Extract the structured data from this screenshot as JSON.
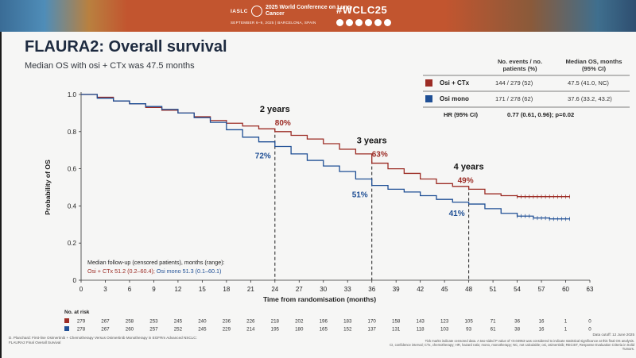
{
  "banner": {
    "org": "IASLC",
    "conference": "2025 World Conference on Lung Cancer",
    "dates": "SEPTEMBER 6–9, 2025 | BARCELONA, SPAIN",
    "hashtag": "#WCLC25",
    "social_icons": [
      "facebook-icon",
      "linkedin-icon",
      "x-icon",
      "instagram-icon",
      "youtube-icon",
      "wechat-icon"
    ]
  },
  "slide": {
    "title": "FLAURA2: Overall survival",
    "subtitle": "Median OS with osi + CTx was 47.5 months"
  },
  "table": {
    "col1_header": "No. events / no. patients (%)",
    "col2_header": "Median OS, months (95% CI)",
    "rows": [
      {
        "label": "Osi + CTx",
        "events": "144 / 279 (52)",
        "median": "47.5 (41.0, NC)",
        "color": "#9c2c25"
      },
      {
        "label": "Osi mono",
        "events": "171 / 278 (62)",
        "median": "37.6 (33.2, 43.2)",
        "color": "#1f4f95"
      }
    ],
    "hr_label": "HR (95% CI)",
    "hr_value": "0.77 (0.61, 0.96); p=0.02"
  },
  "chart_data": {
    "type": "line",
    "title": "FLAURA2: Overall survival",
    "xlabel": "Time from randomisation (months)",
    "ylabel": "Probability of OS",
    "xlim": [
      0,
      63
    ],
    "ylim": [
      0,
      1.0
    ],
    "x_ticks": [
      0,
      3,
      6,
      9,
      12,
      15,
      18,
      21,
      24,
      27,
      30,
      33,
      36,
      39,
      42,
      45,
      48,
      51,
      54,
      57,
      60,
      63
    ],
    "y_ticks": [
      "0",
      "0.2",
      "0.4",
      "0.6",
      "0.8",
      "1.0"
    ],
    "y_tick_values": [
      0,
      0.2,
      0.4,
      0.6,
      0.8,
      1.0
    ],
    "series": [
      {
        "name": "Osi + CTx",
        "color": "#9c2c25",
        "x": [
          0,
          2,
          4,
          6,
          8,
          10,
          12,
          14,
          16,
          18,
          20,
          22,
          24,
          26,
          28,
          30,
          32,
          34,
          36,
          38,
          40,
          42,
          44,
          46,
          48,
          50,
          52,
          54,
          56,
          58,
          60.5
        ],
        "y": [
          1.0,
          0.985,
          0.965,
          0.95,
          0.93,
          0.915,
          0.9,
          0.88,
          0.86,
          0.845,
          0.83,
          0.815,
          0.8,
          0.78,
          0.76,
          0.735,
          0.705,
          0.68,
          0.63,
          0.6,
          0.575,
          0.545,
          0.52,
          0.505,
          0.49,
          0.465,
          0.455,
          0.45,
          0.45,
          0.45,
          0.45
        ]
      },
      {
        "name": "Osi mono",
        "color": "#1f4f95",
        "x": [
          0,
          2,
          4,
          6,
          8,
          10,
          12,
          14,
          16,
          18,
          20,
          22,
          24,
          26,
          28,
          30,
          32,
          34,
          36,
          38,
          40,
          42,
          44,
          46,
          48,
          50,
          52,
          54,
          56,
          58,
          60.5
        ],
        "y": [
          1.0,
          0.98,
          0.965,
          0.95,
          0.935,
          0.92,
          0.9,
          0.875,
          0.85,
          0.81,
          0.77,
          0.745,
          0.72,
          0.68,
          0.645,
          0.615,
          0.585,
          0.545,
          0.51,
          0.49,
          0.475,
          0.455,
          0.435,
          0.42,
          0.41,
          0.385,
          0.36,
          0.345,
          0.335,
          0.33,
          0.33
        ]
      }
    ],
    "milestones": [
      {
        "label": "2 years",
        "x": 24,
        "upper": {
          "text": "80%",
          "y": 0.8
        },
        "lower": {
          "text": "72%",
          "y": 0.72
        }
      },
      {
        "label": "3 years",
        "x": 36,
        "upper": {
          "text": "63%",
          "y": 0.63
        },
        "lower": {
          "text": "51%",
          "y": 0.51
        }
      },
      {
        "label": "4 years",
        "x": 48,
        "upper": {
          "text": "49%",
          "y": 0.49
        },
        "lower": {
          "text": "41%",
          "y": 0.41
        }
      }
    ],
    "followup": {
      "heading": "Median follow-up (censored patients), months (range):",
      "osi_ctx": "Osi + CTx 51.2 (0.2–60.4);",
      "osi_mono": "Osi mono 51.3 (0.1–60.1)"
    },
    "at_risk": {
      "label": "No. at risk",
      "rows": [
        {
          "color": "#9c2c25",
          "values": [
            "279",
            "267",
            "258",
            "253",
            "245",
            "240",
            "236",
            "226",
            "218",
            "202",
            "196",
            "183",
            "170",
            "158",
            "143",
            "123",
            "105",
            "71",
            "36",
            "16",
            "1",
            "0"
          ]
        },
        {
          "color": "#1f4f95",
          "values": [
            "278",
            "267",
            "260",
            "257",
            "252",
            "245",
            "229",
            "214",
            "195",
            "180",
            "165",
            "152",
            "137",
            "131",
            "118",
            "103",
            "93",
            "61",
            "38",
            "16",
            "1",
            "0"
          ]
        }
      ]
    }
  },
  "footer": {
    "left_line1": "D. Planchard: First-line Osimertinib + Chemotherapy Versus Osimertinib Monotherapy in EGFRm Advanced NSCLC:",
    "left_line2": "FLAURA2 Final Overall Survival",
    "right_line1": "Tick marks indicate censored data. A two-sided P value of <0.04953 was considered to indicate statistical significance at this final OS analysis.",
    "right_line2": "CI, confidence interval; CTx, chemotherapy; HR, hazard ratio; mono, monotherapy; NC, not calculable; osi, osimertinib; RECIST, Response Evaluation Criteria in Solid Tumors.",
    "date_cutoff": "Data cutoff: 12 June 2025"
  }
}
